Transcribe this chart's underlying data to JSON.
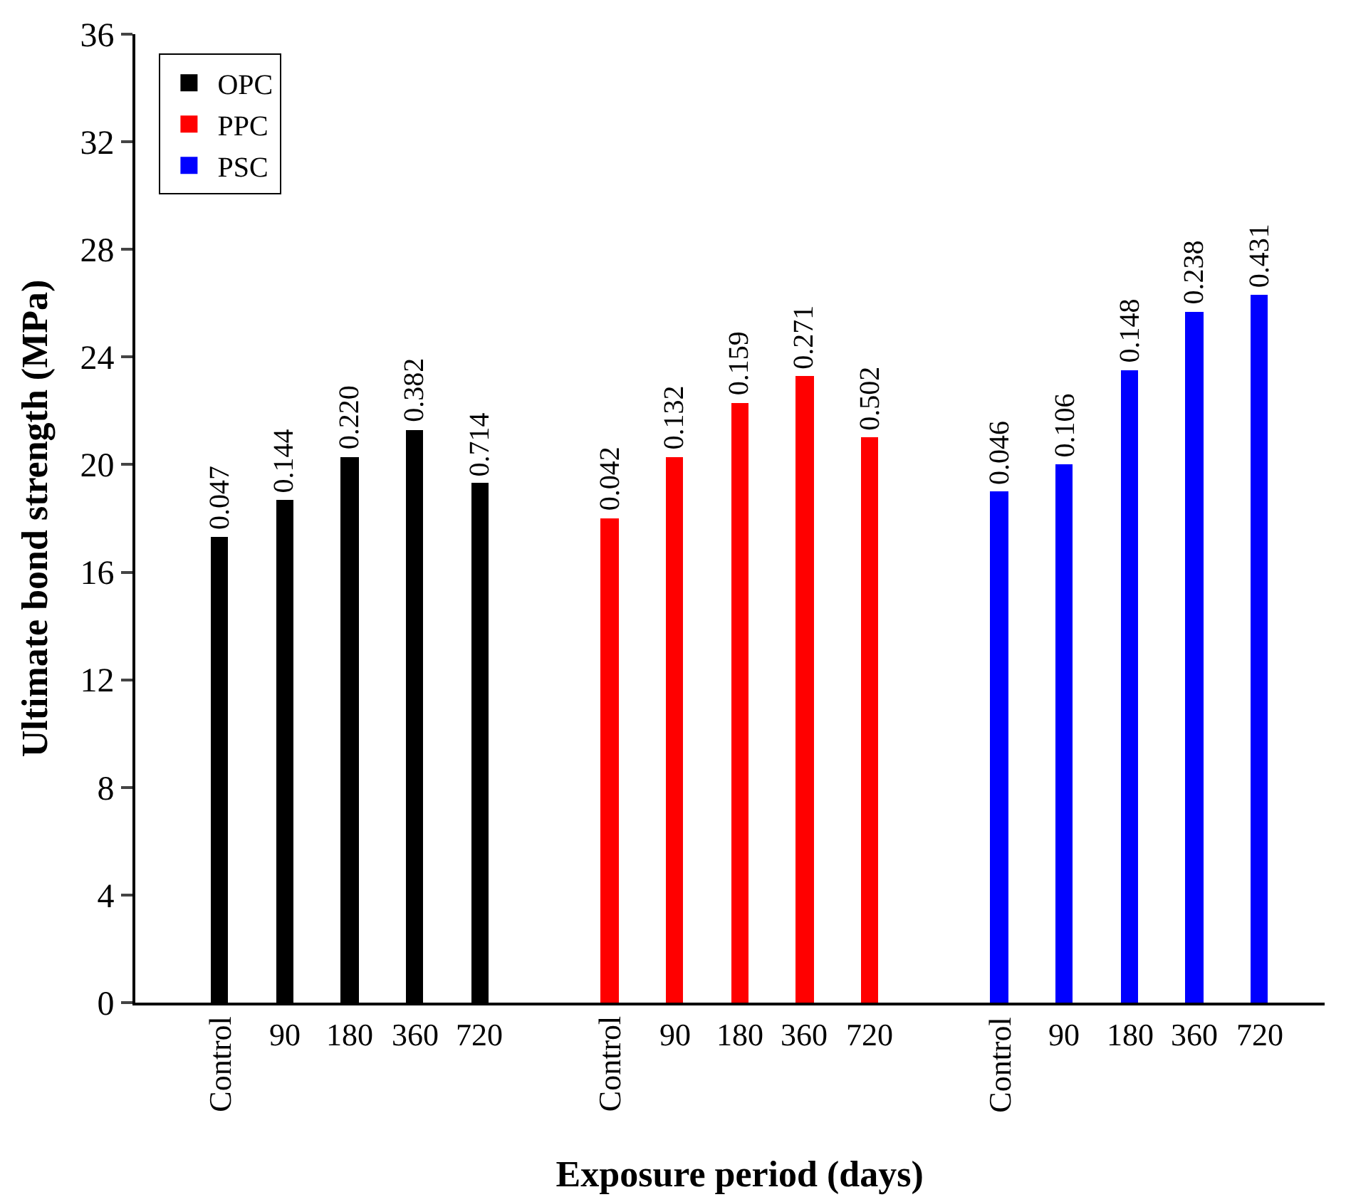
{
  "chart_data": [
    {
      "type": "bar",
      "ylabel": "Ultimate bond strength (MPa)",
      "categories": [
        "Control",
        "90",
        "180",
        "360",
        "720"
      ],
      "series": [
        {
          "name": "OPC",
          "color": "#000000",
          "values": [
            17.3,
            18.7,
            20.3,
            21.3,
            19.3
          ]
        }
      ],
      "annotations": [
        {
          "text": "0.047",
          "x": "Control",
          "y": 17.3
        },
        {
          "text": "0.144",
          "x": "90",
          "y": 18.7
        },
        {
          "text": "0.220",
          "x": "180",
          "y": 20.3
        },
        {
          "text": "0.382",
          "x": "360",
          "y": 21.3
        },
        {
          "text": "0.714",
          "x": "720",
          "y": 19.3
        }
      ],
      "ylim": [
        0,
        36
      ],
      "yticks": [
        0,
        4,
        8,
        12,
        16,
        20,
        24,
        28,
        32,
        36
      ],
      "legend": "top left"
    },
    {
      "type": "bar",
      "xlabel": "Exposure period (days)",
      "categories": [
        "Control",
        "90",
        "180",
        "360",
        "720"
      ],
      "series": [
        {
          "name": "PPC",
          "color": "#ff0000",
          "values": [
            18.0,
            20.3,
            22.3,
            23.3,
            21.0
          ]
        }
      ],
      "annotations": [
        {
          "text": "0.042",
          "x": "Control",
          "y": 18.0
        },
        {
          "text": "0.132",
          "x": "90",
          "y": 20.3
        },
        {
          "text": "0.159",
          "x": "180",
          "y": 22.3
        },
        {
          "text": "0.271",
          "x": "360",
          "y": 23.3
        },
        {
          "text": "0.502",
          "x": "720",
          "y": 21.0
        }
      ],
      "ylim": [
        0,
        36
      ],
      "yticks": [
        0,
        4,
        8,
        12,
        16,
        20,
        24,
        28,
        32,
        36
      ],
      "tick_labels": "x"
    },
    {
      "type": "bar",
      "categories": [
        "Control",
        "90",
        "180",
        "360",
        "720"
      ],
      "series": [
        {
          "name": "PSC",
          "color": "#0000ff",
          "values": [
            19.0,
            20.0,
            23.5,
            25.7,
            26.3
          ]
        }
      ],
      "annotations": [
        {
          "text": "0.046",
          "x": "Control",
          "y": 19.0
        },
        {
          "text": "0.106",
          "x": "90",
          "y": 20.0
        },
        {
          "text": "0.148",
          "x": "180",
          "y": 23.5
        },
        {
          "text": "0.238",
          "x": "360",
          "y": 25.7
        },
        {
          "text": "0.431",
          "x": "720",
          "y": 26.3
        }
      ],
      "ylim": [
        0,
        36
      ],
      "yticks": [
        0,
        4,
        8,
        12,
        16,
        20,
        24,
        28,
        32,
        36
      ],
      "tick_labels": "x"
    }
  ]
}
